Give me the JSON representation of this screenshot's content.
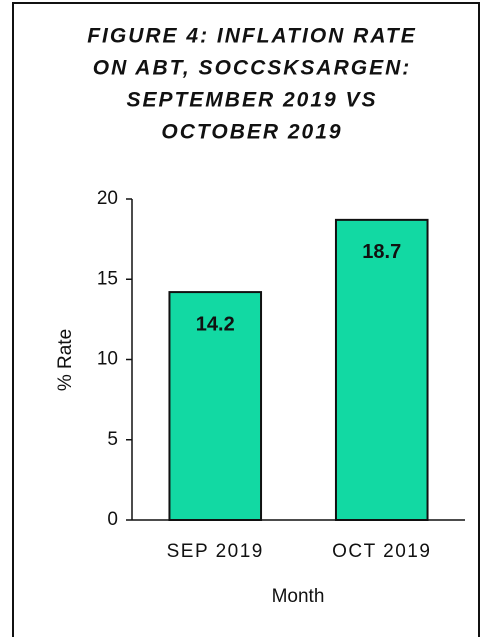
{
  "chart_data": {
    "type": "bar",
    "title": [
      "FIGURE 4: INFLATION RATE",
      "ON ABT, SOCCSKSARGEN:",
      "SEPTEMBER 2019 VS",
      "OCTOBER 2019"
    ],
    "x_label": "Month",
    "y_label": "% Rate",
    "categories": [
      "SEP 2019",
      "OCT 2019"
    ],
    "values": [
      14.2,
      18.7
    ],
    "color": "#12d9a3",
    "ylim": [
      0,
      20
    ],
    "yticks": [
      0,
      5,
      10,
      15,
      20
    ],
    "grid": false
  }
}
